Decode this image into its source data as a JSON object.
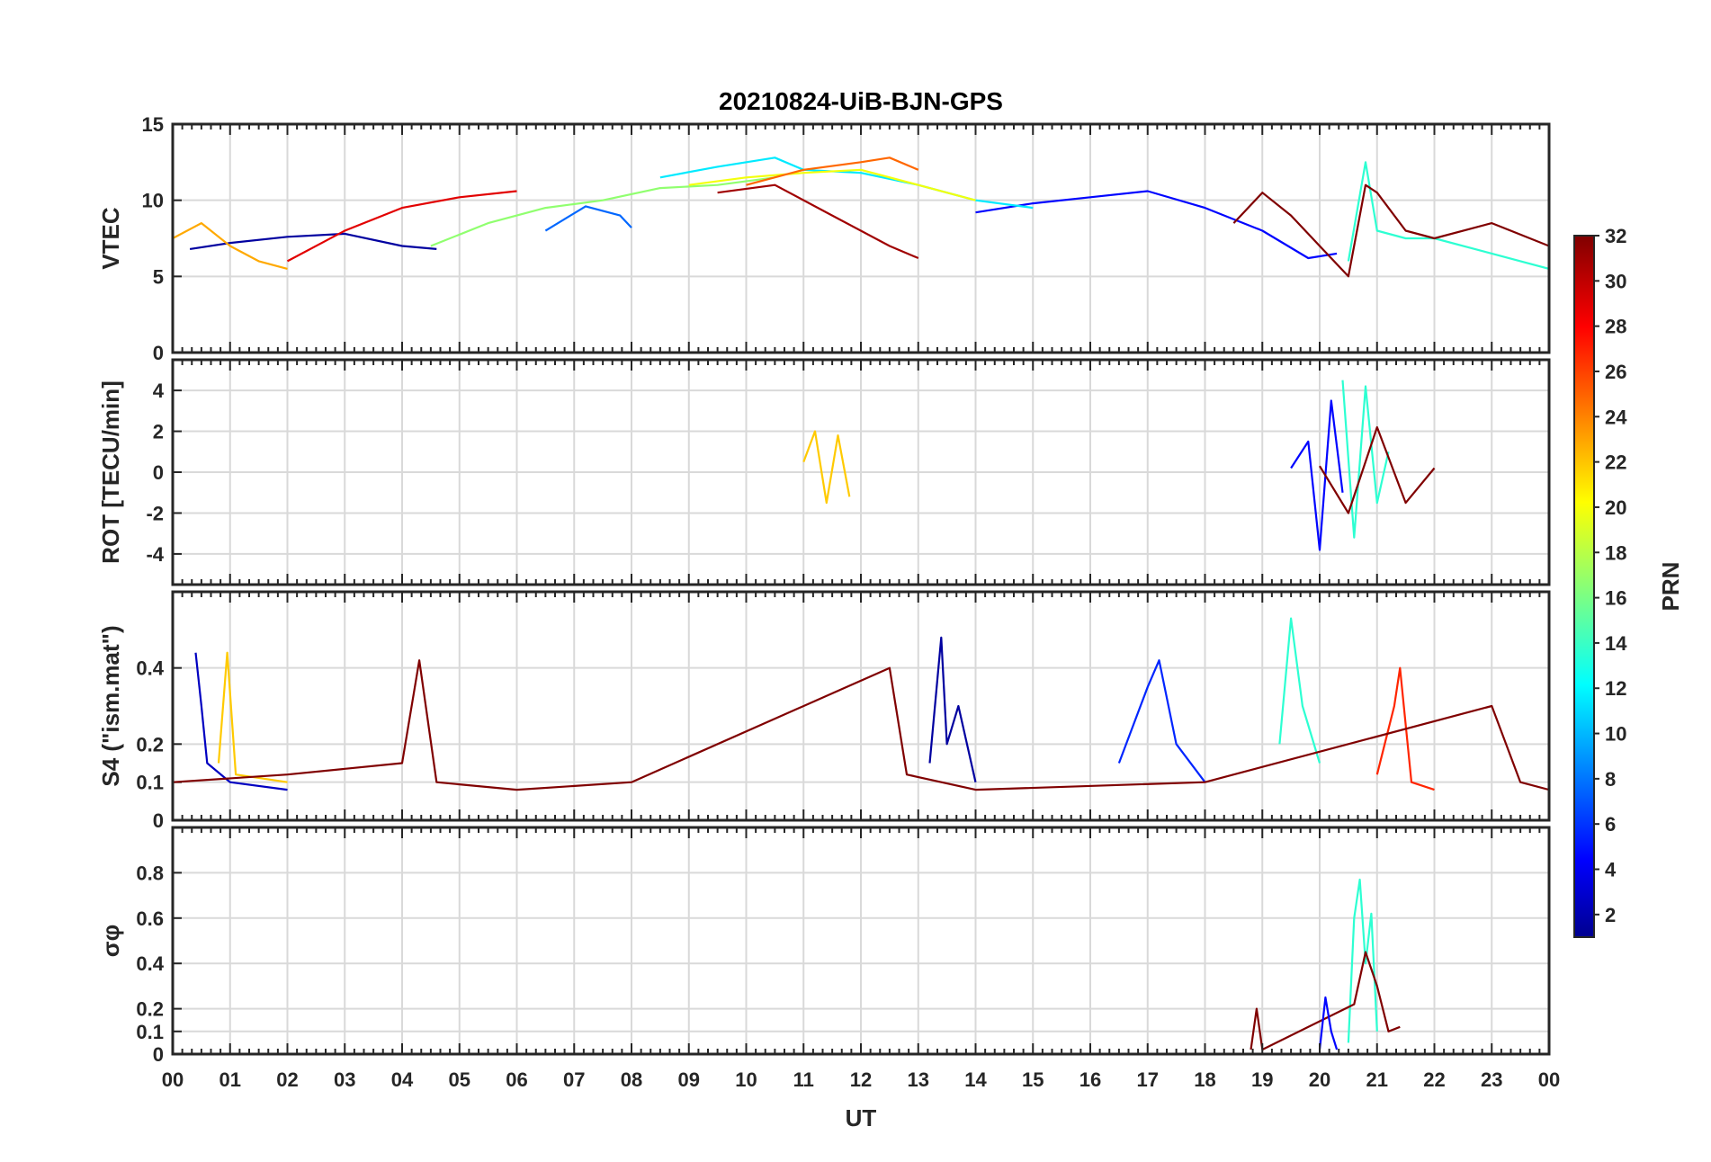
{
  "chart_data": [
    {
      "id": "vtec",
      "type": "line",
      "title": "20210824-UiB-BJN-GPS",
      "ylabel": "VTEC",
      "ylim": [
        0,
        15
      ],
      "yticks": [
        0,
        5,
        10,
        15
      ],
      "ytick_labels": [
        "0",
        "5",
        "10",
        "15"
      ],
      "series": [
        {
          "name": "PRN 2",
          "prn": 2,
          "x": [
            0.3,
            1.0,
            2.0,
            3.0,
            4.0,
            4.6
          ],
          "values": [
            6.8,
            7.2,
            7.6,
            7.8,
            7.0,
            6.8
          ]
        },
        {
          "name": "PRN 5",
          "prn": 5,
          "x": [
            14.0,
            15.0,
            16.0,
            17.0,
            18.0,
            19.0,
            19.8,
            20.3
          ],
          "values": [
            9.2,
            9.8,
            10.2,
            10.6,
            9.5,
            8.0,
            6.2,
            6.5
          ]
        },
        {
          "name": "PRN 8",
          "prn": 8,
          "x": [
            6.5,
            7.2,
            7.8,
            8.0
          ],
          "values": [
            8.0,
            9.6,
            9.0,
            8.2
          ]
        },
        {
          "name": "PRN 12",
          "prn": 12,
          "x": [
            8.5,
            9.5,
            10.5,
            11.0,
            12.0,
            13.0,
            14.0,
            15.0
          ],
          "values": [
            11.5,
            12.2,
            12.8,
            12.0,
            11.8,
            11.0,
            10.0,
            9.5
          ]
        },
        {
          "name": "PRN 14",
          "prn": 14,
          "x": [
            20.5,
            20.8,
            21.0,
            21.5,
            22.0,
            23.0,
            24.0
          ],
          "values": [
            6.0,
            12.5,
            8.0,
            7.5,
            7.5,
            6.5,
            5.5
          ]
        },
        {
          "name": "PRN 17",
          "prn": 17,
          "x": [
            4.5,
            5.5,
            6.5,
            7.5,
            8.5,
            9.5,
            10.5
          ],
          "values": [
            7.0,
            8.5,
            9.5,
            10.0,
            10.8,
            11.0,
            11.5
          ]
        },
        {
          "name": "PRN 20",
          "prn": 20,
          "x": [
            9.0,
            10.0,
            11.0,
            12.0,
            13.0,
            14.0
          ],
          "values": [
            11.0,
            11.5,
            11.8,
            12.0,
            11.0,
            10.0
          ]
        },
        {
          "name": "PRN 23",
          "prn": 23,
          "x": [
            0.0,
            0.5,
            1.0,
            1.5,
            2.0
          ],
          "values": [
            7.5,
            8.5,
            7.0,
            6.0,
            5.5
          ]
        },
        {
          "name": "PRN 25",
          "prn": 25,
          "x": [
            10.0,
            11.0,
            12.0,
            12.5,
            13.0
          ],
          "values": [
            11.0,
            12.0,
            12.5,
            12.8,
            12.0
          ]
        },
        {
          "name": "PRN 29",
          "prn": 29,
          "x": [
            2.0,
            3.0,
            4.0,
            5.0,
            6.0
          ],
          "values": [
            6.0,
            8.0,
            9.5,
            10.2,
            10.6
          ]
        },
        {
          "name": "PRN 31",
          "prn": 31,
          "x": [
            9.5,
            10.5,
            11.5,
            12.5,
            13.0
          ],
          "values": [
            10.5,
            11.0,
            9.0,
            7.0,
            6.2
          ]
        },
        {
          "name": "PRN 32",
          "prn": 32,
          "x": [
            18.5,
            19.0,
            19.5,
            20.0,
            20.5,
            20.8,
            21.0,
            21.5,
            22.0,
            23.0,
            24.0
          ],
          "values": [
            8.5,
            10.5,
            9.0,
            7.0,
            5.0,
            11.0,
            10.5,
            8.0,
            7.5,
            8.5,
            7.0
          ]
        }
      ]
    },
    {
      "id": "rot",
      "type": "line",
      "ylabel": "ROT [TECU/min]",
      "ylim": [
        -5.5,
        5.5
      ],
      "yticks": [
        -4,
        -2,
        0,
        2,
        4
      ],
      "ytick_labels": [
        "-4",
        "-2",
        "0",
        "2",
        "4"
      ],
      "series": [
        {
          "name": "PRN 5",
          "prn": 5,
          "x": [
            19.5,
            19.8,
            20.0,
            20.2,
            20.4
          ],
          "values": [
            0.2,
            1.5,
            -3.8,
            3.5,
            -1.0
          ]
        },
        {
          "name": "PRN 14",
          "prn": 14,
          "x": [
            20.4,
            20.6,
            20.8,
            21.0,
            21.2
          ],
          "values": [
            4.5,
            -3.2,
            4.2,
            -1.5,
            1.0
          ]
        },
        {
          "name": "PRN 22",
          "prn": 22,
          "x": [
            11.0,
            11.2,
            11.4,
            11.6,
            11.8
          ],
          "values": [
            0.5,
            2.0,
            -1.5,
            1.8,
            -1.2
          ]
        },
        {
          "name": "PRN 32",
          "prn": 32,
          "x": [
            20.0,
            20.5,
            21.0,
            21.5,
            22.0
          ],
          "values": [
            0.3,
            -2.0,
            2.2,
            -1.5,
            0.2
          ]
        }
      ]
    },
    {
      "id": "s4",
      "type": "line",
      "ylabel": "S4 (\"ism.mat\")",
      "ylim": [
        0,
        0.6
      ],
      "yticks": [
        0,
        0.1,
        0.2,
        0.4
      ],
      "ytick_labels": [
        "0",
        "0.1",
        "0.2",
        "0.4"
      ],
      "series": [
        {
          "name": "PRN 3",
          "prn": 3,
          "x": [
            0.4,
            0.5,
            0.6,
            1.0,
            2.0
          ],
          "values": [
            0.44,
            0.3,
            0.15,
            0.1,
            0.08
          ]
        },
        {
          "name": "PRN 2",
          "prn": 2,
          "x": [
            13.2,
            13.4,
            13.5,
            13.7,
            14.0
          ],
          "values": [
            0.15,
            0.48,
            0.2,
            0.3,
            0.1
          ]
        },
        {
          "name": "PRN 6",
          "prn": 6,
          "x": [
            16.5,
            17.0,
            17.2,
            17.5,
            18.0
          ],
          "values": [
            0.15,
            0.35,
            0.42,
            0.2,
            0.1
          ]
        },
        {
          "name": "PRN 14",
          "prn": 14,
          "x": [
            19.3,
            19.5,
            19.7,
            20.0
          ],
          "values": [
            0.2,
            0.53,
            0.3,
            0.15
          ]
        },
        {
          "name": "PRN 22",
          "prn": 22,
          "x": [
            0.8,
            0.95,
            1.1,
            2.0
          ],
          "values": [
            0.15,
            0.44,
            0.12,
            0.1
          ]
        },
        {
          "name": "PRN 27",
          "prn": 27,
          "x": [
            21.0,
            21.3,
            21.4,
            21.6,
            22.0
          ],
          "values": [
            0.12,
            0.3,
            0.4,
            0.1,
            0.08
          ]
        },
        {
          "name": "PRN 32",
          "prn": 32,
          "x": [
            0.0,
            2.0,
            4.0,
            4.3,
            4.6,
            6.0,
            8.0,
            12.5,
            12.8,
            14.0,
            18.0,
            23.0,
            23.5,
            24.0
          ],
          "values": [
            0.1,
            0.12,
            0.15,
            0.42,
            0.1,
            0.08,
            0.1,
            0.4,
            0.12,
            0.08,
            0.1,
            0.3,
            0.1,
            0.08
          ]
        }
      ]
    },
    {
      "id": "sigma",
      "type": "line",
      "ylabel": "σφ",
      "ylim": [
        0,
        1.0
      ],
      "yticks": [
        0,
        0.1,
        0.2,
        0.4,
        0.6,
        0.8
      ],
      "ytick_labels": [
        "0",
        "0.1",
        "0.2",
        "0.4",
        "0.6",
        "0.8"
      ],
      "series": [
        {
          "name": "PRN 14",
          "prn": 14,
          "x": [
            20.5,
            20.6,
            20.7,
            20.8,
            20.9,
            21.0
          ],
          "values": [
            0.05,
            0.6,
            0.77,
            0.4,
            0.62,
            0.1
          ]
        },
        {
          "name": "PRN 32",
          "prn": 32,
          "x": [
            18.8,
            18.9,
            19.0,
            20.6,
            20.8,
            21.0,
            21.2,
            21.4
          ],
          "values": [
            0.02,
            0.2,
            0.02,
            0.22,
            0.45,
            0.3,
            0.1,
            0.12
          ]
        },
        {
          "name": "PRN 5",
          "prn": 5,
          "x": [
            20.0,
            20.1,
            20.2,
            20.3
          ],
          "values": [
            0.02,
            0.25,
            0.1,
            0.02
          ]
        }
      ]
    }
  ],
  "xaxis": {
    "label": "UT",
    "xlim": [
      0,
      24
    ],
    "tick_labels": [
      "00",
      "01",
      "02",
      "03",
      "04",
      "05",
      "06",
      "07",
      "08",
      "09",
      "10",
      "11",
      "12",
      "13",
      "14",
      "15",
      "16",
      "17",
      "18",
      "19",
      "20",
      "21",
      "22",
      "23",
      "00"
    ]
  },
  "colorbar": {
    "label": "PRN",
    "range": [
      1,
      32
    ],
    "tick_labels": [
      "2",
      "4",
      "6",
      "8",
      "10",
      "12",
      "14",
      "16",
      "18",
      "20",
      "22",
      "24",
      "26",
      "28",
      "30",
      "32"
    ],
    "colormap": "jet"
  }
}
